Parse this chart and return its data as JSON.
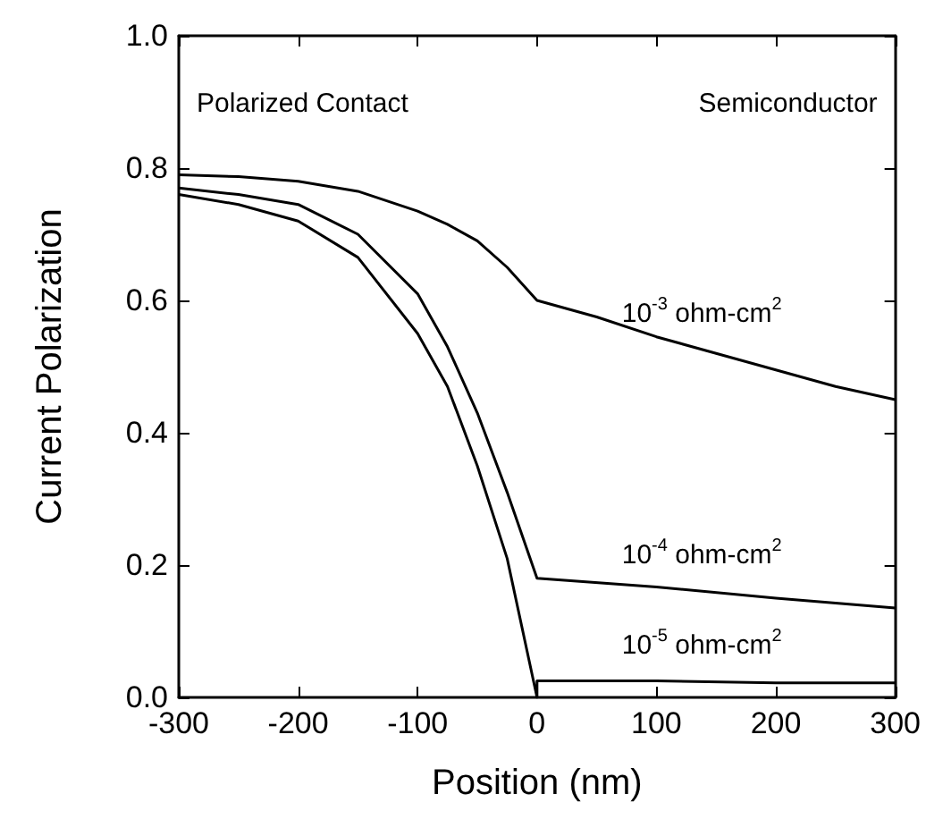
{
  "chart_data": {
    "type": "line",
    "xlabel": "Position (nm)",
    "ylabel": "Current Polarization",
    "xlim": [
      -300,
      300
    ],
    "xticks": [
      -300,
      -200,
      -100,
      0,
      100,
      200,
      300
    ],
    "ylim": [
      0,
      1
    ],
    "yticks": [
      {
        "value": 0,
        "label": "0.0"
      },
      0.2,
      0.4,
      0.6,
      0.8,
      {
        "value": 1,
        "label": "1.0"
      }
    ],
    "grid": false,
    "marker": "none",
    "line_style": "solid",
    "series": [
      {
        "color": "#000000",
        "x": [
          -300,
          -250,
          -200,
          -150,
          -100,
          -75,
          -50,
          -25,
          0,
          50,
          100,
          150,
          200,
          250,
          300
        ],
        "values": [
          0.79,
          0.787,
          0.78,
          0.765,
          0.735,
          0.715,
          0.69,
          0.65,
          0.6,
          0.575,
          0.545,
          0.52,
          0.495,
          0.47,
          0.45
        ]
      },
      {
        "color": "#000000",
        "x": [
          -300,
          -250,
          -200,
          -150,
          -100,
          -75,
          -50,
          -25,
          0,
          100,
          200,
          300
        ],
        "values": [
          0.77,
          0.76,
          0.745,
          0.7,
          0.61,
          0.53,
          0.43,
          0.31,
          0.18,
          0.167,
          0.15,
          0.135
        ]
      },
      {
        "color": "#000000",
        "x": [
          -300,
          -250,
          -200,
          -150,
          -100,
          -75,
          -50,
          -25,
          0,
          0,
          100,
          200,
          300
        ],
        "values": [
          0.76,
          0.745,
          0.72,
          0.665,
          0.55,
          0.47,
          0.35,
          0.21,
          0,
          0.025,
          0.025,
          0.022,
          0.022
        ]
      }
    ],
    "annotations": [
      "Polarized Contact",
      "Semiconductor",
      "10$^{-3}$ ohm-cm$^{2}$",
      "10$^{-4}$ ohm-cm$^{2}$",
      "10$^{-5}$ ohm-cm$^{2}$"
    ]
  }
}
